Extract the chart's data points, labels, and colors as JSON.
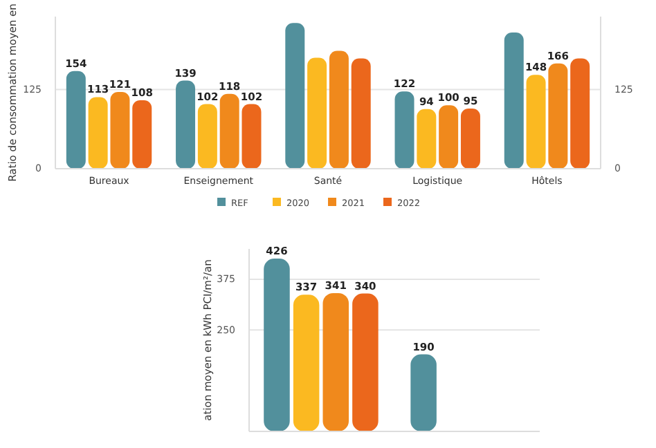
{
  "chart_data": [
    {
      "type": "bar",
      "ylabel": "Ratio de consommation moyen en",
      "categories": [
        "Bureaux",
        "Enseignement",
        "Santé",
        "Logistique",
        "Hôtels"
      ],
      "ylim": [
        0,
        240
      ],
      "yticks": [
        0,
        125
      ],
      "y2lim": [
        0,
        240
      ],
      "y2ticks": [
        0,
        125
      ],
      "grid": "y",
      "legend": "bottom",
      "series": [
        {
          "name": "REF",
          "color": "#52909c",
          "values": [
            154,
            139,
            230,
            122,
            215
          ],
          "value_labels": [
            "154",
            "139",
            null,
            "122",
            null
          ]
        },
        {
          "name": "2020",
          "color": "#fbb921",
          "values": [
            113,
            102,
            175,
            94,
            148
          ],
          "value_labels": [
            "113",
            "102",
            null,
            "94",
            "148"
          ]
        },
        {
          "name": "2021",
          "color": "#f0891c",
          "values": [
            121,
            118,
            186,
            100,
            166
          ],
          "value_labels": [
            "121",
            "118",
            null,
            "100",
            "166"
          ]
        },
        {
          "name": "2022",
          "color": "#eb671c",
          "values": [
            108,
            102,
            174,
            95,
            174
          ],
          "value_labels": [
            "108",
            "102",
            null,
            "95",
            null
          ]
        }
      ]
    },
    {
      "type": "bar",
      "ylabel": "ation moyen en kWh PCI/m²/an",
      "categories": [
        null,
        null
      ],
      "ylim": [
        0,
        450
      ],
      "yticks": [
        250,
        375
      ],
      "grid": "y",
      "legend": false,
      "series": [
        {
          "color": "#52909c",
          "values": [
            426,
            190
          ],
          "value_labels": [
            "426",
            "190"
          ]
        },
        {
          "color": "#fbb921",
          "values": [
            337,
            null
          ],
          "value_labels": [
            "337",
            null
          ]
        },
        {
          "color": "#f0891c",
          "values": [
            341,
            null
          ],
          "value_labels": [
            "341",
            null
          ]
        },
        {
          "color": "#eb671c",
          "values": [
            340,
            null
          ],
          "value_labels": [
            "340",
            null
          ]
        }
      ]
    }
  ]
}
